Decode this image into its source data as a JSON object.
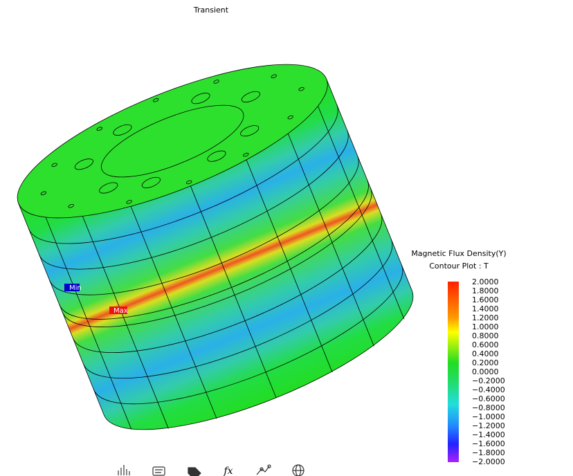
{
  "title": "Transient",
  "legend": {
    "title": "Magnetic Flux Density(Y)",
    "subtitle": "Contour Plot : T",
    "labels": [
      "2.0000",
      "1.8000",
      "1.6000",
      "1.4000",
      "1.2000",
      "1.0000",
      "0.8000",
      "0.6000",
      "0.4000",
      "0.2000",
      "0.0000",
      "−0.2000",
      "−0.4000",
      "−0.6000",
      "−0.8000",
      "−1.0000",
      "−1.2000",
      "−1.4000",
      "−1.6000",
      "−1.8000",
      "−2.0000"
    ]
  },
  "markers": {
    "min": "Min",
    "max": "Max"
  }
}
